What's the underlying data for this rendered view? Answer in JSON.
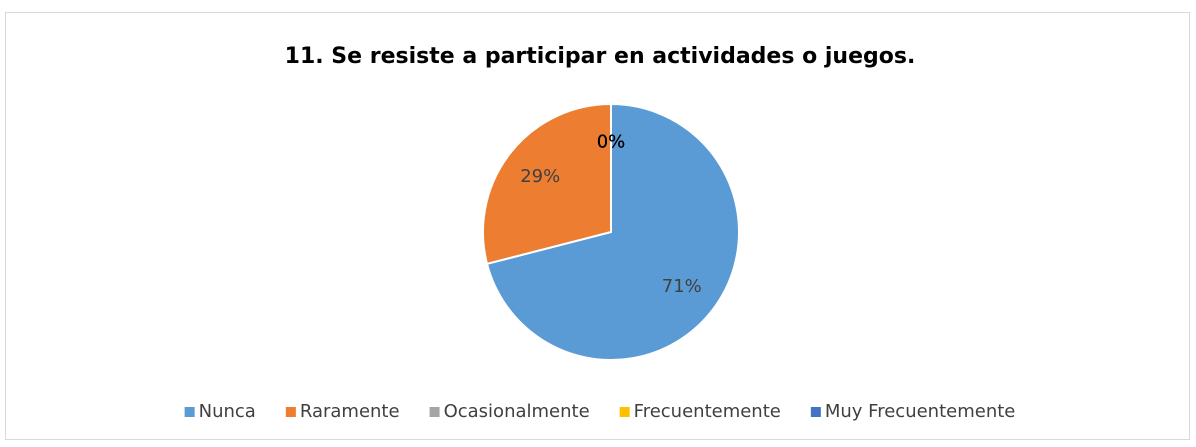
{
  "chart_data": {
    "type": "pie",
    "title": "11. Se resiste a participar en actividades o juegos.",
    "categories": [
      "Nunca",
      "Raramente",
      "Ocasionalmente",
      "Frecuentemente",
      "Muy Frecuentemente"
    ],
    "values": [
      71,
      29,
      0,
      0,
      0
    ],
    "value_labels": [
      "71%",
      "29%",
      "0%",
      "0%",
      "0%"
    ],
    "colors": [
      "#5b9bd5",
      "#ed7d31",
      "#a5a5a5",
      "#ffc000",
      "#4472c4"
    ],
    "legend": "bottom"
  }
}
